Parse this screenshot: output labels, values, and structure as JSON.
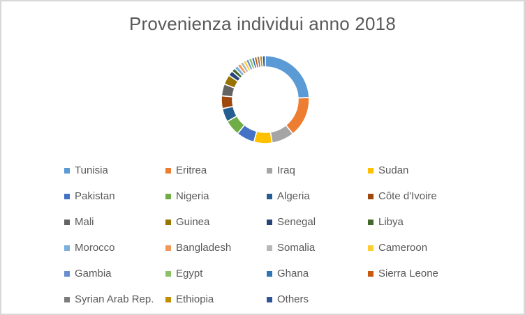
{
  "window": {
    "background_color": "#FFFFFF",
    "border_color": "#D8D8D8"
  },
  "chart_data": {
    "type": "pie",
    "subtype": "doughnut",
    "title": "Provenienza individui anno 2018",
    "title_color": "#595959",
    "hole_ratio": 0.75,
    "start_angle_deg": 0,
    "direction": "clockwise",
    "legend_position": "bottom",
    "legend_columns": 4,
    "separator_color": "#FFFFFF",
    "categories": [
      "Tunisia",
      "Eritrea",
      "Iraq",
      "Sudan",
      "Pakistan",
      "Nigeria",
      "Algeria",
      "Côte d'Ivoire",
      "Mali",
      "Guinea",
      "Senegal",
      "Libya",
      "Morocco",
      "Bangladesh",
      "Somalia",
      "Cameroon",
      "Gambia",
      "Egypt",
      "Ghana",
      "Sierra Leone",
      "Syrian Arab Rep.",
      "Ethiopia",
      "Others"
    ],
    "values": [
      24.2,
      15.0,
      8.3,
      6.7,
      6.7,
      5.8,
      5.0,
      4.7,
      4.4,
      3.6,
      1.9,
      1.4,
      1.4,
      1.25,
      1.25,
      1.1,
      1.1,
      1.1,
      1.0,
      1.0,
      1.0,
      1.0,
      1.1
    ],
    "values_unit": "percent (estimated from arc angles)",
    "colors": [
      "#5B9BD5",
      "#ED7D31",
      "#A5A5A5",
      "#FFC000",
      "#4472C4",
      "#70AD47",
      "#255E91",
      "#9E480E",
      "#636363",
      "#997300",
      "#264478",
      "#43682B",
      "#7CAFDD",
      "#F1975A",
      "#B7B7B7",
      "#FFCD33",
      "#698ED0",
      "#8CC168",
      "#2E75B6",
      "#C55A11",
      "#7C7C7C",
      "#BF8F00",
      "#2F5597"
    ]
  }
}
